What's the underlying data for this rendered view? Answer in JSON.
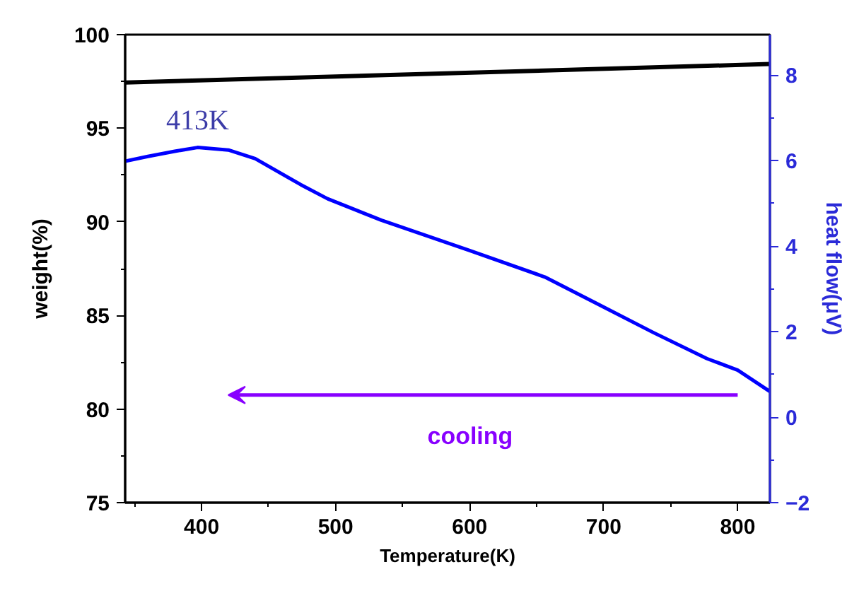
{
  "chart_data": {
    "type": "line",
    "xlabel": "Temperature(K)",
    "ylabel": "weight(%)",
    "y2label": "heat flow(μV)",
    "xlim": [
      343,
      824
    ],
    "xticks": [
      400,
      500,
      600,
      700,
      800
    ],
    "ylim": [
      75,
      100
    ],
    "yticks": [
      75,
      80,
      85,
      90,
      95,
      100
    ],
    "y2lim": [
      -2,
      8.95
    ],
    "y2ticks": [
      -2,
      0,
      2,
      4,
      6,
      8
    ],
    "series": [
      {
        "color": "#000000",
        "x": [
          343,
          824
        ],
        "values": [
          97.44,
          98.43
        ]
      },
      {
        "color": "#0000ff",
        "axis": "y2",
        "x": [
          343,
          360,
          380,
          397,
          420,
          440,
          474,
          494,
          534,
          600,
          656,
          696,
          737,
          777,
          800,
          824
        ],
        "values": [
          5.99,
          6.1,
          6.22,
          6.31,
          6.25,
          6.05,
          5.44,
          5.11,
          4.61,
          3.9,
          3.28,
          2.64,
          1.98,
          1.37,
          1.1,
          0.6
        ]
      }
    ],
    "annotations": [
      "413K",
      "cooling"
    ],
    "grid": false
  }
}
